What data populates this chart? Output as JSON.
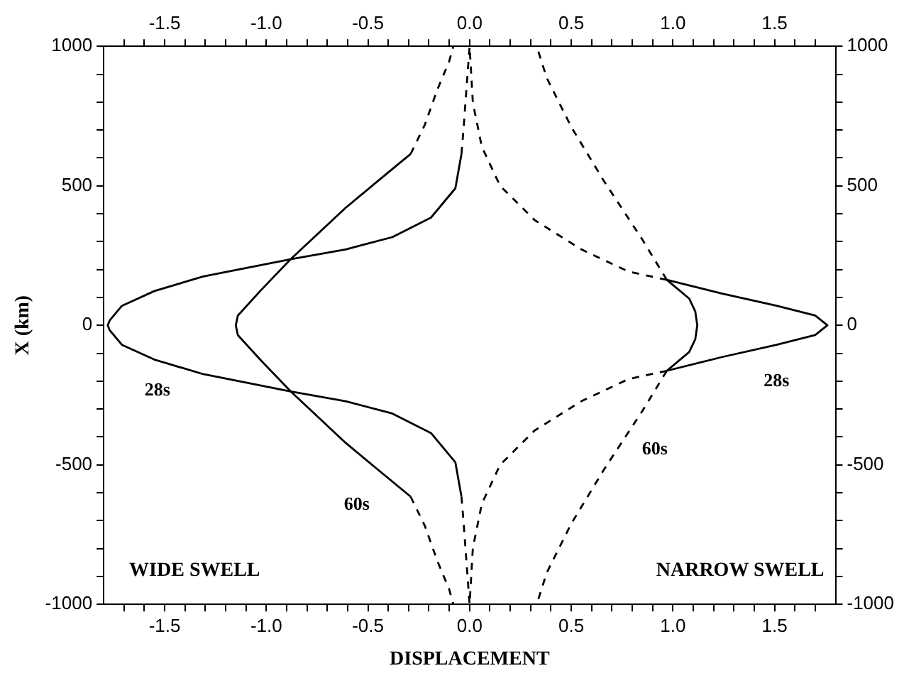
{
  "chart_data": {
    "type": "line",
    "xlabel": "DISPLACEMENT",
    "ylabel": "X (km)",
    "xlim": [
      -1.8,
      1.8
    ],
    "ylim": [
      -1000,
      1000
    ],
    "x2lim": [
      -1.8,
      1.8
    ],
    "y2lim": [
      -1000,
      1000
    ],
    "xticks": [
      {
        "value": -1.7,
        "label": null
      },
      {
        "value": -1.6,
        "label": null
      },
      -1.5,
      {
        "value": -1.4,
        "label": null
      },
      {
        "value": -1.3,
        "label": null
      },
      {
        "value": -1.2,
        "label": null
      },
      {
        "value": -1.1,
        "label": null
      },
      {
        "value": -1,
        "label": "-1.0"
      },
      {
        "value": -0.9,
        "label": null
      },
      {
        "value": -0.8,
        "label": null
      },
      {
        "value": -0.7,
        "label": null
      },
      {
        "value": -0.6,
        "label": null
      },
      -0.5,
      {
        "value": -0.4,
        "label": null
      },
      {
        "value": -0.3,
        "label": null
      },
      {
        "value": -0.2,
        "label": null
      },
      {
        "value": -0.1,
        "label": null
      },
      {
        "value": 0,
        "label": "0.0"
      },
      {
        "value": 0.1,
        "label": null
      },
      {
        "value": 0.2,
        "label": null
      },
      {
        "value": 0.3,
        "label": null
      },
      {
        "value": 0.4,
        "label": null
      },
      0.5,
      {
        "value": 0.6,
        "label": null
      },
      {
        "value": 0.7,
        "label": null
      },
      {
        "value": 0.8,
        "label": null
      },
      {
        "value": 0.9,
        "label": null
      },
      {
        "value": 1,
        "label": "1.0"
      },
      {
        "value": 1.1,
        "label": null
      },
      {
        "value": 1.2,
        "label": null
      },
      {
        "value": 1.3,
        "label": null
      },
      {
        "value": 1.4,
        "label": null
      },
      1.5,
      {
        "value": 1.6,
        "label": null
      },
      {
        "value": 1.7,
        "label": null
      }
    ],
    "x2ticks": [
      {
        "value": -1.7,
        "label": null
      },
      {
        "value": -1.6,
        "label": null
      },
      -1.5,
      {
        "value": -1.4,
        "label": null
      },
      {
        "value": -1.3,
        "label": null
      },
      {
        "value": -1.2,
        "label": null
      },
      {
        "value": -1.1,
        "label": null
      },
      {
        "value": -1,
        "label": "-1.0"
      },
      {
        "value": -0.9,
        "label": null
      },
      {
        "value": -0.8,
        "label": null
      },
      {
        "value": -0.7,
        "label": null
      },
      {
        "value": -0.6,
        "label": null
      },
      -0.5,
      {
        "value": -0.4,
        "label": null
      },
      {
        "value": -0.3,
        "label": null
      },
      {
        "value": -0.2,
        "label": null
      },
      {
        "value": -0.1,
        "label": null
      },
      {
        "value": 0,
        "label": "0.0"
      },
      {
        "value": 0.1,
        "label": null
      },
      {
        "value": 0.2,
        "label": null
      },
      {
        "value": 0.3,
        "label": null
      },
      {
        "value": 0.4,
        "label": null
      },
      0.5,
      {
        "value": 0.6,
        "label": null
      },
      {
        "value": 0.7,
        "label": null
      },
      {
        "value": 0.8,
        "label": null
      },
      {
        "value": 0.9,
        "label": null
      },
      {
        "value": 1,
        "label": "1.0"
      },
      {
        "value": 1.1,
        "label": null
      },
      {
        "value": 1.2,
        "label": null
      },
      {
        "value": 1.3,
        "label": null
      },
      {
        "value": 1.4,
        "label": null
      },
      1.5,
      {
        "value": 1.6,
        "label": null
      },
      {
        "value": 1.7,
        "label": null
      }
    ],
    "yticks": [
      -1000,
      {
        "value": -900,
        "label": null
      },
      {
        "value": -800,
        "label": null
      },
      {
        "value": -700,
        "label": null
      },
      {
        "value": -600,
        "label": null
      },
      -500,
      {
        "value": -400,
        "label": null
      },
      {
        "value": -300,
        "label": null
      },
      {
        "value": -200,
        "label": null
      },
      {
        "value": -100,
        "label": null
      },
      0,
      {
        "value": 100,
        "label": null
      },
      {
        "value": 200,
        "label": null
      },
      {
        "value": 300,
        "label": null
      },
      {
        "value": 400,
        "label": null
      },
      500,
      {
        "value": 600,
        "label": null
      },
      {
        "value": 700,
        "label": null
      },
      {
        "value": 800,
        "label": null
      },
      {
        "value": 900,
        "label": null
      },
      1000
    ],
    "y2ticks": [
      -1000,
      {
        "value": -900,
        "label": null
      },
      {
        "value": -800,
        "label": null
      },
      {
        "value": -700,
        "label": null
      },
      {
        "value": -600,
        "label": null
      },
      -500,
      {
        "value": -400,
        "label": null
      },
      {
        "value": -300,
        "label": null
      },
      {
        "value": -200,
        "label": null
      },
      {
        "value": -100,
        "label": null
      },
      0,
      {
        "value": 100,
        "label": null
      },
      {
        "value": 200,
        "label": null
      },
      {
        "value": 300,
        "label": null
      },
      {
        "value": 400,
        "label": null
      },
      500,
      {
        "value": 600,
        "label": null
      },
      {
        "value": 700,
        "label": null
      },
      {
        "value": 800,
        "label": null
      },
      {
        "value": 900,
        "label": null
      },
      1000
    ],
    "series": [
      {
        "name": "28s",
        "color": "#000000",
        "line_style": "solid",
        "x": [
          -0.04,
          -0.07,
          -0.19,
          -0.38,
          -0.61,
          -0.88,
          -1.31,
          -1.55,
          -1.71,
          -1.77,
          -1.78,
          -1.77,
          -1.71,
          -1.55,
          -1.31,
          -0.88,
          -0.61,
          -0.38,
          -0.19,
          -0.07,
          -0.04
        ],
        "values": [
          614,
          491,
          386,
          316,
          272,
          237,
          175,
          123,
          70,
          18,
          0,
          -18,
          -70,
          -123,
          -175,
          -237,
          -272,
          -316,
          -386,
          -491,
          -614
        ]
      },
      {
        "name": "60s",
        "color": "#000000",
        "line_style": "solid",
        "x": [
          -0.29,
          -0.45,
          -0.61,
          -0.88,
          -1.03,
          -1.14,
          -1.15,
          -1.14,
          -1.03,
          -0.88,
          -0.61,
          -0.45,
          -0.29
        ],
        "values": [
          614,
          518,
          421,
          237,
          123,
          35,
          0,
          -35,
          -123,
          -237,
          -421,
          -518,
          -614
        ]
      },
      {
        "color": "#000000",
        "line_style": "dashed",
        "x": [
          -0.04,
          -0.03,
          -0.016,
          0,
          null,
          -0.04,
          -0.03,
          -0.016,
          0
        ],
        "values": [
          614,
          702,
          842,
          1000,
          null,
          -614,
          -702,
          -842,
          -1000
        ]
      },
      {
        "color": "#000000",
        "line_style": "dashed",
        "x": [
          -0.29,
          -0.22,
          -0.16,
          -0.1,
          -0.08,
          null,
          -0.29,
          -0.22,
          -0.16,
          -0.1,
          -0.08
        ],
        "values": [
          614,
          719,
          842,
          947,
          1000,
          null,
          -614,
          -719,
          -842,
          -947,
          -1000
        ]
      },
      {
        "name": "28s",
        "color": "#000000",
        "line_style": "solid",
        "x": [
          0.97,
          1.24,
          1.51,
          1.7,
          1.76,
          1.7,
          1.51,
          1.24,
          0.97
        ],
        "values": [
          163,
          114,
          70,
          35,
          0,
          -35,
          -70,
          -114,
          -163
        ]
      },
      {
        "color": "#000000",
        "line_style": "solid",
        "x": [
          0.97,
          1.08,
          1.11,
          1.12,
          1.11,
          1.08,
          0.97
        ],
        "values": [
          163,
          96,
          50,
          0,
          -50,
          -96,
          -163
        ]
      },
      {
        "color": "#000000",
        "line_style": "dashed",
        "x": [
          0.97,
          0.78,
          0.55,
          0.32,
          0.15,
          0.06,
          0.016,
          0,
          null,
          0.97,
          0.78,
          0.55,
          0.32,
          0.15,
          0.06,
          0.016,
          0
        ],
        "values": [
          163,
          193,
          272,
          377,
          500,
          640,
          798,
          1000,
          null,
          -163,
          -193,
          -272,
          -377,
          -500,
          -640,
          -798,
          -1000
        ]
      },
      {
        "name": "60s",
        "color": "#000000",
        "line_style": "dashed",
        "x": [
          0.97,
          0.85,
          0.66,
          0.5,
          0.38,
          0.33,
          null,
          0.97,
          0.85,
          0.66,
          0.5,
          0.38,
          0.33
        ],
        "values": [
          163,
          307,
          518,
          711,
          886,
          1000,
          null,
          -163,
          -307,
          -518,
          -711,
          -886,
          -1000
        ]
      }
    ],
    "annotations": [
      "WIDE SWELL",
      "NARROW SWELL"
    ]
  }
}
